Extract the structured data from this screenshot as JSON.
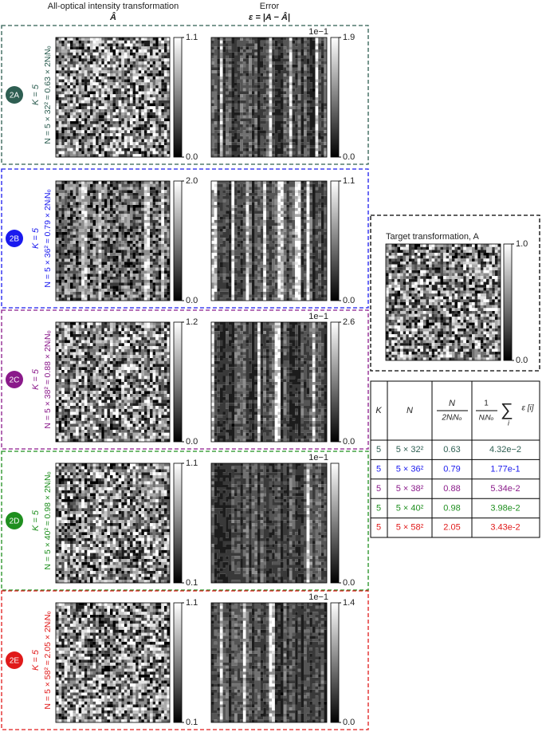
{
  "header": {
    "col1": "All-optical intensity transformation",
    "col1_symbol": "Â",
    "col2": "Error",
    "col2_formula": "ε = |A − Â|"
  },
  "panels": [
    {
      "label": "2A",
      "color": "#2e5e52",
      "k": "K = 5",
      "n": "N = 5 × 32² ≈ 0.63 × 2NᵢNₒ",
      "cb1": [
        "1.1",
        "0.0"
      ],
      "cb2": [
        "1.9",
        "0.0"
      ],
      "exponent": "1e−1"
    },
    {
      "label": "2B",
      "color": "#1a1aee",
      "k": "K = 5",
      "n": "N = 5 × 36² ≈ 0.79 × 2NᵢNₒ",
      "cb1": [
        "2.0",
        "0.0"
      ],
      "cb2": [
        "1.1",
        "0.0"
      ]
    },
    {
      "label": "2C",
      "color": "#8a1a8a",
      "k": "K = 5",
      "n": "N = 5 × 38² ≈ 0.88 × 2NᵢNₒ",
      "cb1": [
        "1.2",
        "0.0"
      ],
      "cb2": [
        "2.6",
        "0.0"
      ],
      "exponent": "1e−1"
    },
    {
      "label": "2D",
      "color": "#1f8f1f",
      "k": "K = 5",
      "n": "N = 5 × 40² ≈ 0.98 × 2NᵢNₒ",
      "cb1": [
        "1.1",
        "0.1"
      ],
      "cb2": [
        "0.0"
      ],
      "exponent": "1e−1"
    },
    {
      "label": "2E",
      "color": "#e01a1a",
      "k": "K = 5",
      "n": "N = 5 × 58² ≈ 2.05 × 2NᵢNₒ",
      "cb1": [
        "1.1",
        "0.1"
      ],
      "cb2": [
        "1.4",
        "0.0"
      ],
      "exponent": "1e−1"
    }
  ],
  "target": {
    "title": "Target transformation, A",
    "cb": [
      "1.0",
      "0.0"
    ]
  },
  "table": {
    "header": {
      "k": "K",
      "n": "N",
      "ratio_num": "N",
      "ratio_den": "2NᵢNₒ",
      "sum_num": "1",
      "sum_den": "NᵢNₒ",
      "sum_sign": "∑",
      "sum_index": "i",
      "sum_term": "ε [i]"
    },
    "rows": [
      {
        "color": "#2e5e52",
        "cells": [
          "5",
          "5 × 32²",
          "0.63",
          "4.32e−2"
        ]
      },
      {
        "color": "#1a1aee",
        "cells": [
          "5",
          "5 × 36²",
          "0.79",
          "1.77e-1"
        ]
      },
      {
        "color": "#8a1a8a",
        "cells": [
          "5",
          "5 × 38²",
          "0.88",
          "5.34e-2"
        ]
      },
      {
        "color": "#1f8f1f",
        "cells": [
          "5",
          "5 × 40²",
          "0.98",
          "3.98e-2"
        ]
      },
      {
        "color": "#e01a1a",
        "cells": [
          "5",
          "5 × 58²",
          "2.05",
          "3.43e-2"
        ]
      }
    ]
  }
}
